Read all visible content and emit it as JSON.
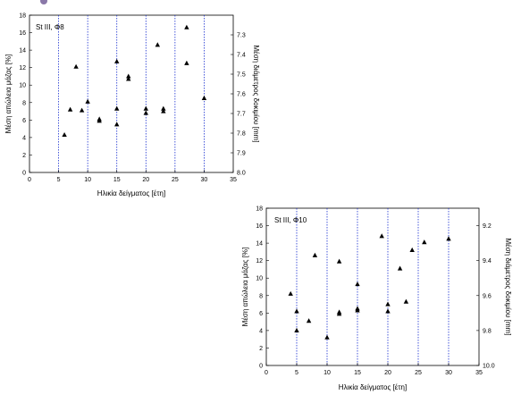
{
  "chart_data": [
    {
      "type": "scatter",
      "title": "St III, Φ8",
      "xlabel": "Ηλικία δείγματος [έτη]",
      "ylabel": "Μέση απώλεια μάζας [%]",
      "y2label": "Μέση διάμετρος δοκιμίου [mm]",
      "xlim": [
        0,
        35
      ],
      "ylim": [
        0,
        18
      ],
      "y2lim": [
        7.2,
        8.0
      ],
      "y2_reversed": true,
      "xticks": [
        0,
        5,
        10,
        15,
        20,
        25,
        30,
        35
      ],
      "yticks": [
        0,
        2,
        4,
        6,
        8,
        10,
        12,
        14,
        16,
        18
      ],
      "y2ticks": [
        7.3,
        7.4,
        7.5,
        7.6,
        7.7,
        7.8,
        7.9,
        8.0
      ],
      "x_guides": [
        5,
        10,
        15,
        20,
        25,
        30
      ],
      "marker": "triangle",
      "series": [
        {
          "points": [
            [
              6,
              4.3
            ],
            [
              7,
              7.2
            ],
            [
              8,
              12.1
            ],
            [
              9,
              7.1
            ],
            [
              10,
              8.1
            ],
            [
              12,
              6.1
            ],
            [
              12,
              5.9
            ],
            [
              15,
              7.3
            ],
            [
              15,
              5.5
            ],
            [
              15,
              12.7
            ],
            [
              17,
              11.0
            ],
            [
              17,
              10.7
            ],
            [
              20,
              7.3
            ],
            [
              20,
              6.8
            ],
            [
              22,
              14.6
            ],
            [
              23,
              7.3
            ],
            [
              23,
              7.0
            ],
            [
              27,
              16.6
            ],
            [
              27,
              12.5
            ],
            [
              30,
              8.5
            ]
          ]
        }
      ]
    },
    {
      "type": "scatter",
      "title": "St III, Φ10",
      "xlabel": "Ηλικία δείγματος [έτη]",
      "ylabel": "Μέση απώλεια μάζας [%]",
      "y2label": "Μέση διάμετρος δοκιμίου [mm]",
      "xlim": [
        0,
        35
      ],
      "ylim": [
        0,
        18
      ],
      "y2lim": [
        9.1,
        10.0
      ],
      "y2_reversed": true,
      "xticks": [
        0,
        5,
        10,
        15,
        20,
        25,
        30,
        35
      ],
      "yticks": [
        0,
        2,
        4,
        6,
        8,
        10,
        12,
        14,
        16,
        18
      ],
      "y2ticks": [
        9.2,
        9.4,
        9.6,
        9.8,
        10.0
      ],
      "x_guides": [
        5,
        10,
        15,
        20,
        25,
        30
      ],
      "marker": "triangle",
      "series": [
        {
          "points": [
            [
              4,
              8.2
            ],
            [
              5,
              6.2
            ],
            [
              5,
              4.0
            ],
            [
              7,
              5.1
            ],
            [
              8,
              12.6
            ],
            [
              10,
              3.2
            ],
            [
              12,
              11.9
            ],
            [
              12,
              6.1
            ],
            [
              12,
              5.9
            ],
            [
              15,
              9.3
            ],
            [
              15,
              6.5
            ],
            [
              15,
              6.3
            ],
            [
              19,
              14.8
            ],
            [
              20,
              7.0
            ],
            [
              20,
              6.2
            ],
            [
              22,
              11.1
            ],
            [
              23,
              7.3
            ],
            [
              24,
              13.2
            ],
            [
              26,
              14.1
            ],
            [
              30,
              14.5
            ]
          ]
        }
      ]
    }
  ]
}
